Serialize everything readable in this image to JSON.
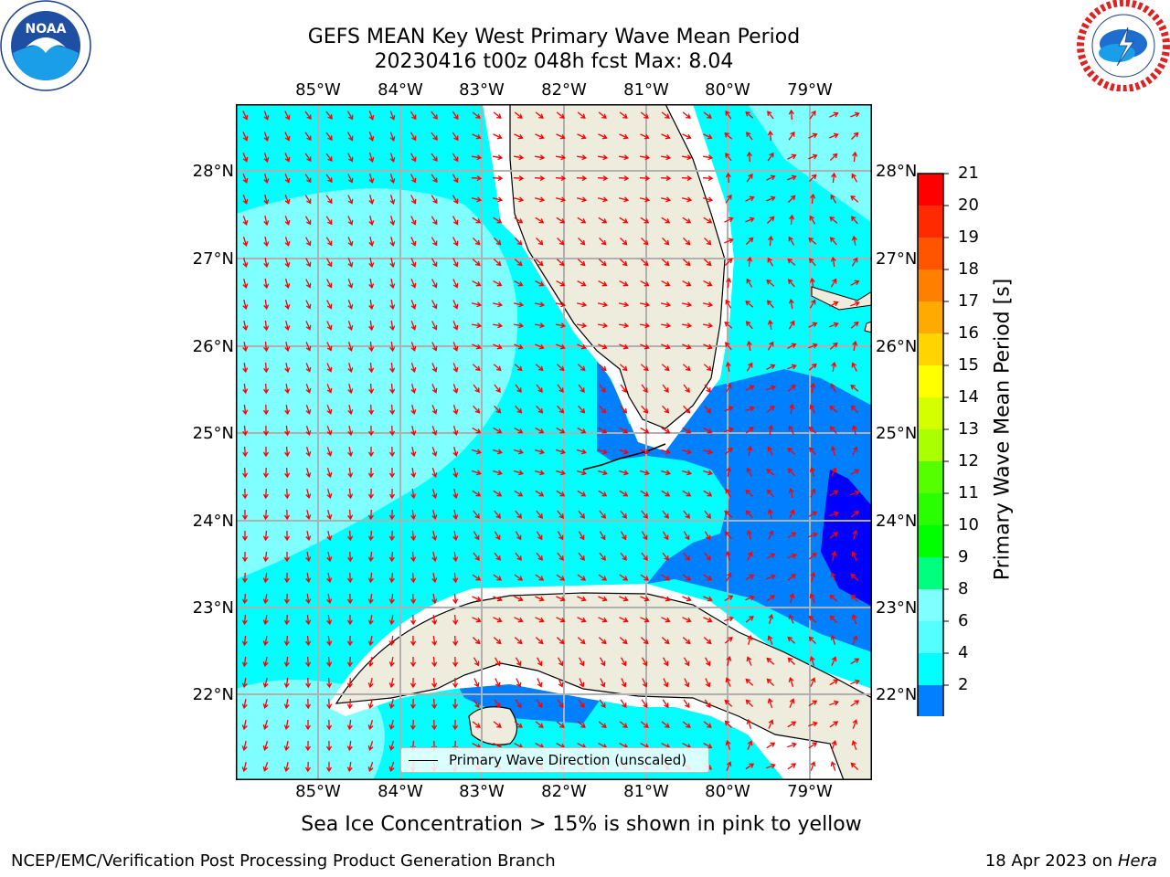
{
  "title": {
    "line1": "GEFS MEAN Key West Primary Wave Mean Period",
    "line2": "20230416 t00z 048h fcst   Max: 8.04"
  },
  "map": {
    "lon_labels": [
      "85°W",
      "84°W",
      "83°W",
      "82°W",
      "81°W",
      "80°W",
      "79°W"
    ],
    "lat_labels": [
      "28°N",
      "27°N",
      "26°N",
      "25°N",
      "24°N",
      "23°N",
      "22°N"
    ],
    "legend_label": "Primary Wave Direction (unscaled)",
    "colors": {
      "land": "#eeecdc",
      "ocean_light": "#7fffff",
      "ocean_cyan": "#00ffff",
      "ocean_blue": "#007fff",
      "ocean_deep": "#0000ff",
      "arrow": "#ff0000",
      "grid": "#b0b0b0"
    }
  },
  "colorbar": {
    "title": "Primary Wave Mean Period [s]",
    "ticks": [
      "21",
      "20",
      "19",
      "18",
      "17",
      "16",
      "15",
      "14",
      "13",
      "12",
      "11",
      "10",
      "9",
      "8",
      "6",
      "4",
      "2"
    ],
    "colors": [
      "#ff0000",
      "#ff2a00",
      "#ff5500",
      "#ff7f00",
      "#ffaa00",
      "#ffd400",
      "#ffff00",
      "#d4ff00",
      "#aaff00",
      "#55ff00",
      "#2aff00",
      "#00ff00",
      "#00ff7f",
      "#7fffff",
      "#55ffff",
      "#00ffff",
      "#007fff"
    ],
    "extend_color": "#0000ff"
  },
  "note": "Sea Ice Concentration > 15% is shown in pink to yellow",
  "footer": {
    "left": "NCEP/EMC/Verification Post Processing Product Generation Branch",
    "right_date": "18 Apr 2023 on ",
    "right_host": "Hera"
  },
  "logos": {
    "left": "NOAA",
    "right": "NATIONAL WEATHER SERVICE"
  }
}
